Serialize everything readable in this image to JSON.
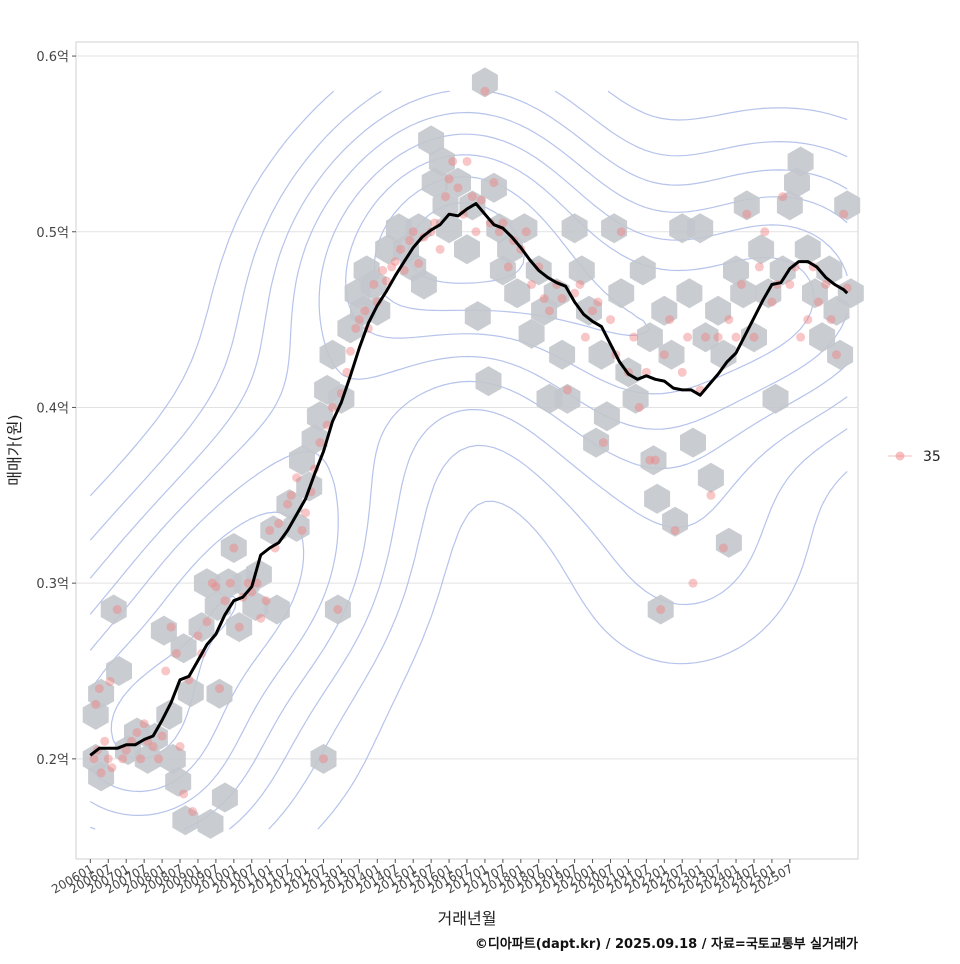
{
  "chart_data": {
    "type": "scatter",
    "title": "",
    "xlabel": "거래년월",
    "ylabel": "매매가(원)",
    "y_ticks": [
      {
        "value": 0.2,
        "label": "0.2억"
      },
      {
        "value": 0.3,
        "label": "0.3억"
      },
      {
        "value": 0.4,
        "label": "0.4억"
      },
      {
        "value": 0.5,
        "label": "0.5억"
      },
      {
        "value": 0.6,
        "label": "0.6억"
      }
    ],
    "ylim": [
      0.143,
      0.608
    ],
    "xlim": [
      -0.8,
      42.8
    ],
    "x_ticks": [
      "200601",
      "200607",
      "200701",
      "200707",
      "200801",
      "200807",
      "200901",
      "200907",
      "201001",
      "201007",
      "201101",
      "201107",
      "201201",
      "201207",
      "201301",
      "201307",
      "201401",
      "201407",
      "201501",
      "201507",
      "201601",
      "201607",
      "201701",
      "201707",
      "201801",
      "201807",
      "201901",
      "201907",
      "202001",
      "202007",
      "202101",
      "202107",
      "202201",
      "202207",
      "202301",
      "202307",
      "202401",
      "202407",
      "202501",
      "202507"
    ],
    "legend": {
      "label": "35",
      "position": "right"
    },
    "footer": "©디아파트(dapt.kr) / 2025.09.18 / 자료=국토교통부 실거래가",
    "colors": {
      "hex": "#c3c7cc",
      "point": "#f08080",
      "line": "#000000",
      "contour": "#a9b8e8",
      "grid": "#e2e2e2",
      "panel_border": "#d0d0d0"
    },
    "trend_line": [
      [
        0,
        0.202
      ],
      [
        0.5,
        0.206
      ],
      [
        1,
        0.206
      ],
      [
        1.5,
        0.206
      ],
      [
        2,
        0.208
      ],
      [
        2.5,
        0.208
      ],
      [
        3,
        0.211
      ],
      [
        3.5,
        0.213
      ],
      [
        4,
        0.222
      ],
      [
        4.5,
        0.232
      ],
      [
        5,
        0.245
      ],
      [
        5.5,
        0.247
      ],
      [
        6,
        0.256
      ],
      [
        6.5,
        0.265
      ],
      [
        7,
        0.271
      ],
      [
        7.5,
        0.282
      ],
      [
        8,
        0.29
      ],
      [
        8.5,
        0.292
      ],
      [
        9,
        0.298
      ],
      [
        9.5,
        0.316
      ],
      [
        10,
        0.32
      ],
      [
        10.5,
        0.323
      ],
      [
        11,
        0.33
      ],
      [
        11.5,
        0.339
      ],
      [
        12,
        0.348
      ],
      [
        12.5,
        0.362
      ],
      [
        13,
        0.375
      ],
      [
        13.5,
        0.392
      ],
      [
        14,
        0.403
      ],
      [
        14.5,
        0.418
      ],
      [
        15,
        0.434
      ],
      [
        15.5,
        0.448
      ],
      [
        16,
        0.458
      ],
      [
        16.5,
        0.466
      ],
      [
        17,
        0.475
      ],
      [
        17.5,
        0.483
      ],
      [
        18,
        0.491
      ],
      [
        18.5,
        0.497
      ],
      [
        19,
        0.501
      ],
      [
        19.5,
        0.504
      ],
      [
        20,
        0.51
      ],
      [
        20.5,
        0.509
      ],
      [
        21,
        0.513
      ],
      [
        21.5,
        0.516
      ],
      [
        22,
        0.51
      ],
      [
        22.5,
        0.504
      ],
      [
        23,
        0.502
      ],
      [
        23.5,
        0.497
      ],
      [
        24,
        0.491
      ],
      [
        24.5,
        0.484
      ],
      [
        25,
        0.478
      ],
      [
        25.5,
        0.474
      ],
      [
        26,
        0.471
      ],
      [
        26.5,
        0.469
      ],
      [
        27,
        0.46
      ],
      [
        27.5,
        0.453
      ],
      [
        28,
        0.449
      ],
      [
        28.5,
        0.446
      ],
      [
        29,
        0.436
      ],
      [
        29.5,
        0.426
      ],
      [
        30,
        0.419
      ],
      [
        30.5,
        0.416
      ],
      [
        31,
        0.418
      ],
      [
        31.5,
        0.416
      ],
      [
        32,
        0.415
      ],
      [
        32.5,
        0.411
      ],
      [
        33,
        0.41
      ],
      [
        33.5,
        0.41
      ],
      [
        34,
        0.407
      ],
      [
        34.5,
        0.413
      ],
      [
        35,
        0.419
      ],
      [
        35.5,
        0.426
      ],
      [
        36,
        0.431
      ],
      [
        36.5,
        0.441
      ],
      [
        37,
        0.451
      ],
      [
        37.5,
        0.461
      ],
      [
        38,
        0.47
      ],
      [
        38.5,
        0.471
      ],
      [
        39,
        0.479
      ],
      [
        39.5,
        0.483
      ],
      [
        40,
        0.483
      ],
      [
        40.5,
        0.48
      ],
      [
        41,
        0.474
      ],
      [
        41.5,
        0.47
      ],
      [
        42,
        0.467
      ],
      [
        42.2,
        0.465
      ]
    ],
    "points": [
      [
        0.2,
        0.2
      ],
      [
        0.4,
        0.205
      ],
      [
        0.6,
        0.192
      ],
      [
        0.8,
        0.21
      ],
      [
        1.0,
        0.2
      ],
      [
        1.2,
        0.195
      ],
      [
        0.3,
        0.231
      ],
      [
        0.5,
        0.24
      ],
      [
        1.1,
        0.244
      ],
      [
        1.5,
        0.285
      ],
      [
        1.8,
        0.2
      ],
      [
        2.0,
        0.205
      ],
      [
        2.3,
        0.21
      ],
      [
        2.6,
        0.215
      ],
      [
        2.8,
        0.2
      ],
      [
        3.0,
        0.22
      ],
      [
        3.2,
        0.21
      ],
      [
        3.5,
        0.207
      ],
      [
        3.8,
        0.2
      ],
      [
        4.0,
        0.213
      ],
      [
        4.2,
        0.25
      ],
      [
        4.5,
        0.275
      ],
      [
        4.8,
        0.26
      ],
      [
        5.0,
        0.207
      ],
      [
        5.2,
        0.18
      ],
      [
        5.5,
        0.245
      ],
      [
        5.7,
        0.17
      ],
      [
        6.0,
        0.27
      ],
      [
        6.2,
        0.26
      ],
      [
        6.5,
        0.278
      ],
      [
        6.8,
        0.3
      ],
      [
        7.0,
        0.298
      ],
      [
        7.2,
        0.24
      ],
      [
        7.5,
        0.29
      ],
      [
        7.8,
        0.3
      ],
      [
        8.0,
        0.32
      ],
      [
        8.3,
        0.275
      ],
      [
        8.5,
        0.292
      ],
      [
        8.8,
        0.3
      ],
      [
        9.0,
        0.295
      ],
      [
        9.3,
        0.3
      ],
      [
        9.5,
        0.28
      ],
      [
        9.8,
        0.29
      ],
      [
        10.0,
        0.33
      ],
      [
        10.3,
        0.32
      ],
      [
        10.5,
        0.334
      ],
      [
        11.0,
        0.345
      ],
      [
        11.2,
        0.35
      ],
      [
        11.5,
        0.36
      ],
      [
        11.8,
        0.33
      ],
      [
        12.0,
        0.34
      ],
      [
        12.3,
        0.352
      ],
      [
        12.5,
        0.365
      ],
      [
        12.8,
        0.38
      ],
      [
        13.0,
        0.2
      ],
      [
        13.2,
        0.39
      ],
      [
        13.5,
        0.4
      ],
      [
        13.8,
        0.285
      ],
      [
        14.0,
        0.408
      ],
      [
        14.3,
        0.42
      ],
      [
        14.5,
        0.432
      ],
      [
        14.8,
        0.445
      ],
      [
        15.0,
        0.45
      ],
      [
        15.3,
        0.455
      ],
      [
        15.5,
        0.445
      ],
      [
        15.8,
        0.47
      ],
      [
        16.0,
        0.46
      ],
      [
        16.3,
        0.478
      ],
      [
        16.5,
        0.472
      ],
      [
        16.8,
        0.48
      ],
      [
        17.0,
        0.483
      ],
      [
        17.3,
        0.49
      ],
      [
        17.5,
        0.478
      ],
      [
        17.8,
        0.495
      ],
      [
        18.0,
        0.5
      ],
      [
        18.3,
        0.482
      ],
      [
        18.6,
        0.497
      ],
      [
        19.0,
        0.5
      ],
      [
        19.2,
        0.505
      ],
      [
        19.5,
        0.49
      ],
      [
        19.8,
        0.52
      ],
      [
        20.0,
        0.53
      ],
      [
        20.2,
        0.54
      ],
      [
        20.5,
        0.525
      ],
      [
        20.8,
        0.51
      ],
      [
        21.0,
        0.54
      ],
      [
        21.3,
        0.52
      ],
      [
        21.5,
        0.5
      ],
      [
        21.8,
        0.518
      ],
      [
        22.0,
        0.58
      ],
      [
        22.3,
        0.505
      ],
      [
        22.5,
        0.528
      ],
      [
        22.8,
        0.5
      ],
      [
        23.0,
        0.505
      ],
      [
        23.3,
        0.48
      ],
      [
        23.6,
        0.495
      ],
      [
        24.0,
        0.49
      ],
      [
        24.3,
        0.5
      ],
      [
        24.6,
        0.47
      ],
      [
        25.0,
        0.48
      ],
      [
        25.3,
        0.462
      ],
      [
        25.6,
        0.455
      ],
      [
        26.0,
        0.47
      ],
      [
        26.3,
        0.462
      ],
      [
        26.6,
        0.41
      ],
      [
        27.0,
        0.465
      ],
      [
        27.3,
        0.47
      ],
      [
        27.6,
        0.44
      ],
      [
        28.0,
        0.455
      ],
      [
        28.3,
        0.46
      ],
      [
        28.6,
        0.38
      ],
      [
        29.0,
        0.45
      ],
      [
        29.3,
        0.43
      ],
      [
        29.6,
        0.5
      ],
      [
        30.0,
        0.42
      ],
      [
        30.3,
        0.44
      ],
      [
        30.6,
        0.4
      ],
      [
        31.0,
        0.42
      ],
      [
        31.2,
        0.37
      ],
      [
        31.5,
        0.37
      ],
      [
        31.8,
        0.285
      ],
      [
        32.0,
        0.43
      ],
      [
        32.3,
        0.45
      ],
      [
        32.6,
        0.33
      ],
      [
        33.0,
        0.42
      ],
      [
        33.3,
        0.44
      ],
      [
        33.6,
        0.3
      ],
      [
        34.0,
        0.41
      ],
      [
        34.3,
        0.44
      ],
      [
        34.6,
        0.35
      ],
      [
        35.0,
        0.44
      ],
      [
        35.3,
        0.32
      ],
      [
        35.6,
        0.45
      ],
      [
        36.0,
        0.44
      ],
      [
        36.3,
        0.47
      ],
      [
        36.6,
        0.51
      ],
      [
        37.0,
        0.44
      ],
      [
        37.3,
        0.48
      ],
      [
        37.6,
        0.5
      ],
      [
        38.0,
        0.46
      ],
      [
        38.3,
        0.47
      ],
      [
        38.6,
        0.52
      ],
      [
        39.0,
        0.47
      ],
      [
        39.3,
        0.48
      ],
      [
        39.6,
        0.44
      ],
      [
        40.0,
        0.45
      ],
      [
        40.3,
        0.48
      ],
      [
        40.6,
        0.46
      ],
      [
        41.0,
        0.47
      ],
      [
        41.3,
        0.45
      ],
      [
        41.6,
        0.43
      ],
      [
        42.0,
        0.51
      ],
      [
        42.2,
        0.468
      ]
    ],
    "hexbins": [
      [
        0.3,
        0.2
      ],
      [
        0.6,
        0.19
      ],
      [
        0.3,
        0.225
      ],
      [
        0.6,
        0.237
      ],
      [
        1.3,
        0.285
      ],
      [
        1.6,
        0.25
      ],
      [
        2.1,
        0.205
      ],
      [
        2.6,
        0.215
      ],
      [
        3.2,
        0.2
      ],
      [
        3.6,
        0.212
      ],
      [
        4.1,
        0.273
      ],
      [
        4.4,
        0.225
      ],
      [
        4.6,
        0.2
      ],
      [
        4.9,
        0.187
      ],
      [
        5.2,
        0.263
      ],
      [
        5.3,
        0.165
      ],
      [
        5.6,
        0.238
      ],
      [
        6.2,
        0.275
      ],
      [
        6.5,
        0.3
      ],
      [
        6.7,
        0.163
      ],
      [
        7.1,
        0.287
      ],
      [
        7.2,
        0.237
      ],
      [
        7.5,
        0.178
      ],
      [
        7.7,
        0.3
      ],
      [
        8.0,
        0.32
      ],
      [
        8.3,
        0.275
      ],
      [
        8.7,
        0.3
      ],
      [
        9.2,
        0.287
      ],
      [
        9.4,
        0.305
      ],
      [
        10.2,
        0.33
      ],
      [
        10.4,
        0.285
      ],
      [
        11.1,
        0.345
      ],
      [
        11.5,
        0.332
      ],
      [
        11.8,
        0.37
      ],
      [
        12.2,
        0.355
      ],
      [
        12.5,
        0.382
      ],
      [
        12.8,
        0.395
      ],
      [
        13.0,
        0.2
      ],
      [
        13.2,
        0.41
      ],
      [
        13.5,
        0.43
      ],
      [
        13.8,
        0.285
      ],
      [
        14.0,
        0.405
      ],
      [
        14.5,
        0.445
      ],
      [
        14.9,
        0.465
      ],
      [
        15.2,
        0.455
      ],
      [
        15.4,
        0.478
      ],
      [
        15.8,
        0.47
      ],
      [
        16.0,
        0.455
      ],
      [
        16.6,
        0.49
      ],
      [
        17.2,
        0.502
      ],
      [
        17.6,
        0.49
      ],
      [
        18.0,
        0.48
      ],
      [
        18.3,
        0.502
      ],
      [
        18.6,
        0.47
      ],
      [
        19.0,
        0.552
      ],
      [
        19.2,
        0.528
      ],
      [
        19.6,
        0.54
      ],
      [
        19.8,
        0.515
      ],
      [
        20.0,
        0.502
      ],
      [
        20.5,
        0.528
      ],
      [
        21.0,
        0.49
      ],
      [
        21.3,
        0.515
      ],
      [
        21.6,
        0.452
      ],
      [
        22.0,
        0.585
      ],
      [
        22.2,
        0.415
      ],
      [
        22.5,
        0.525
      ],
      [
        22.8,
        0.502
      ],
      [
        23.0,
        0.478
      ],
      [
        23.4,
        0.49
      ],
      [
        23.8,
        0.465
      ],
      [
        24.2,
        0.502
      ],
      [
        24.6,
        0.442
      ],
      [
        25.0,
        0.478
      ],
      [
        25.3,
        0.455
      ],
      [
        25.6,
        0.405
      ],
      [
        26.0,
        0.465
      ],
      [
        26.3,
        0.43
      ],
      [
        26.6,
        0.405
      ],
      [
        27.0,
        0.502
      ],
      [
        27.4,
        0.478
      ],
      [
        27.8,
        0.455
      ],
      [
        28.2,
        0.38
      ],
      [
        28.5,
        0.43
      ],
      [
        28.8,
        0.395
      ],
      [
        29.2,
        0.502
      ],
      [
        29.6,
        0.465
      ],
      [
        30.0,
        0.42
      ],
      [
        30.4,
        0.405
      ],
      [
        30.8,
        0.478
      ],
      [
        31.2,
        0.44
      ],
      [
        31.4,
        0.37
      ],
      [
        31.6,
        0.348
      ],
      [
        31.8,
        0.285
      ],
      [
        32.0,
        0.455
      ],
      [
        32.4,
        0.43
      ],
      [
        32.6,
        0.335
      ],
      [
        33.0,
        0.502
      ],
      [
        33.4,
        0.465
      ],
      [
        33.6,
        0.38
      ],
      [
        34.0,
        0.502
      ],
      [
        34.3,
        0.44
      ],
      [
        34.6,
        0.36
      ],
      [
        35.0,
        0.455
      ],
      [
        35.3,
        0.43
      ],
      [
        35.6,
        0.323
      ],
      [
        36.0,
        0.478
      ],
      [
        36.4,
        0.465
      ],
      [
        36.6,
        0.515
      ],
      [
        37.0,
        0.44
      ],
      [
        37.4,
        0.49
      ],
      [
        37.8,
        0.465
      ],
      [
        38.2,
        0.405
      ],
      [
        38.6,
        0.478
      ],
      [
        39.0,
        0.515
      ],
      [
        39.4,
        0.528
      ],
      [
        39.6,
        0.54
      ],
      [
        40.0,
        0.49
      ],
      [
        40.4,
        0.465
      ],
      [
        40.8,
        0.44
      ],
      [
        41.2,
        0.478
      ],
      [
        41.6,
        0.455
      ],
      [
        41.8,
        0.43
      ],
      [
        42.2,
        0.515
      ],
      [
        42.4,
        0.465
      ]
    ]
  }
}
